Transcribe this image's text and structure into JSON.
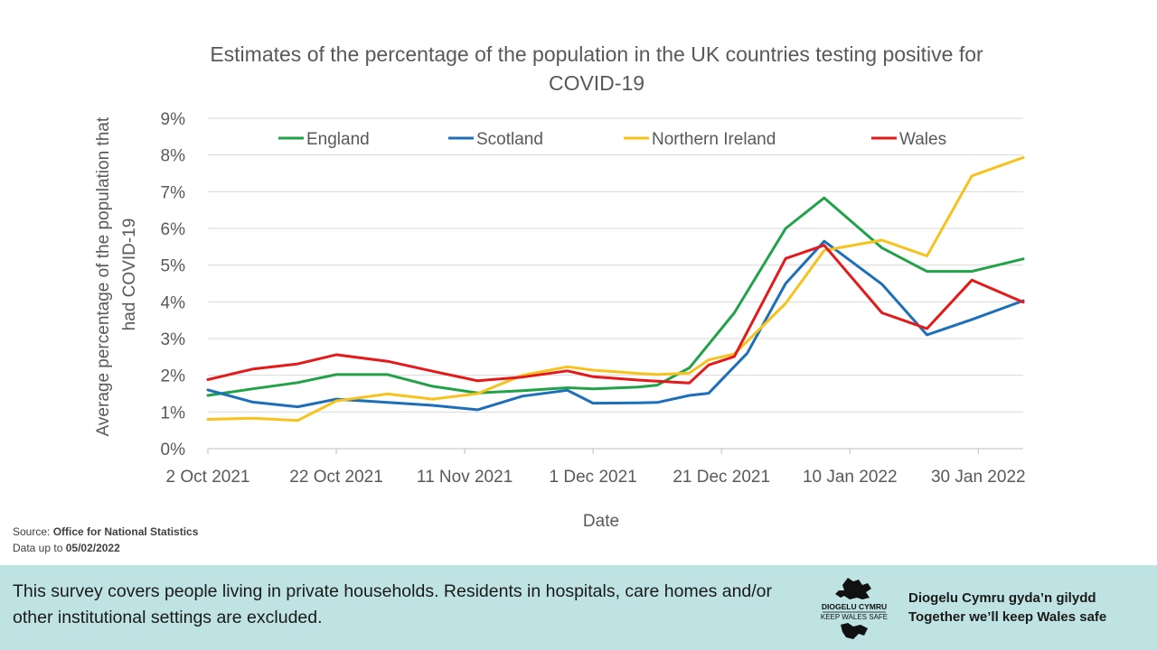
{
  "chart_data": {
    "type": "line",
    "title": "Estimates of the percentage of the population in the UK countries testing positive for COVID-19",
    "xlabel": "Date",
    "ylabel": "Average percentage of the population that had COVID-19",
    "ylim": [
      0,
      9
    ],
    "yticks": [
      "0%",
      "1%",
      "2%",
      "3%",
      "4%",
      "5%",
      "6%",
      "7%",
      "8%",
      "9%"
    ],
    "xticks": [
      {
        "label": "2 Oct 2021",
        "day": 0
      },
      {
        "label": "22 Oct 2021",
        "day": 20
      },
      {
        "label": "11 Nov 2021",
        "day": 40
      },
      {
        "label": "1 Dec 2021",
        "day": 60
      },
      {
        "label": "21 Dec 2021",
        "day": 80
      },
      {
        "label": "10 Jan 2022",
        "day": 100
      },
      {
        "label": "30 Jan 2022",
        "day": 120
      }
    ],
    "xlim": [
      0,
      127
    ],
    "legend_position": "top",
    "series": [
      {
        "name": "England",
        "color": "#21a249",
        "points": [
          [
            0,
            1.45
          ],
          [
            7,
            1.63
          ],
          [
            14,
            1.8
          ],
          [
            20,
            2.02
          ],
          [
            28,
            2.02
          ],
          [
            35,
            1.7
          ],
          [
            42,
            1.52
          ],
          [
            49,
            1.58
          ],
          [
            56,
            1.66
          ],
          [
            60,
            1.63
          ],
          [
            67,
            1.68
          ],
          [
            70,
            1.73
          ],
          [
            75,
            2.2
          ],
          [
            82,
            3.7
          ],
          [
            90,
            6.0
          ],
          [
            96,
            6.83
          ],
          [
            105,
            5.47
          ],
          [
            112,
            4.83
          ],
          [
            119,
            4.83
          ],
          [
            127,
            5.17
          ]
        ]
      },
      {
        "name": "Scotland",
        "color": "#1c6fb8",
        "points": [
          [
            0,
            1.6
          ],
          [
            7,
            1.27
          ],
          [
            14,
            1.14
          ],
          [
            20,
            1.35
          ],
          [
            28,
            1.26
          ],
          [
            35,
            1.18
          ],
          [
            42,
            1.06
          ],
          [
            49,
            1.43
          ],
          [
            56,
            1.59
          ],
          [
            60,
            1.24
          ],
          [
            67,
            1.25
          ],
          [
            70,
            1.26
          ],
          [
            75,
            1.45
          ],
          [
            78,
            1.51
          ],
          [
            84,
            2.6
          ],
          [
            90,
            4.5
          ],
          [
            96,
            5.65
          ],
          [
            105,
            4.48
          ],
          [
            112,
            3.1
          ],
          [
            119,
            3.52
          ],
          [
            127,
            4.03
          ]
        ]
      },
      {
        "name": "Northern Ireland",
        "color": "#f8c21c",
        "points": [
          [
            0,
            0.8
          ],
          [
            7,
            0.83
          ],
          [
            14,
            0.77
          ],
          [
            20,
            1.3
          ],
          [
            28,
            1.49
          ],
          [
            35,
            1.35
          ],
          [
            42,
            1.5
          ],
          [
            49,
            2.0
          ],
          [
            56,
            2.23
          ],
          [
            60,
            2.14
          ],
          [
            67,
            2.05
          ],
          [
            70,
            2.02
          ],
          [
            75,
            2.06
          ],
          [
            78,
            2.42
          ],
          [
            82,
            2.58
          ],
          [
            90,
            3.96
          ],
          [
            96,
            5.4
          ],
          [
            105,
            5.68
          ],
          [
            112,
            5.25
          ],
          [
            119,
            7.43
          ],
          [
            127,
            7.93
          ]
        ]
      },
      {
        "name": "Wales",
        "color": "#e41a1a",
        "points": [
          [
            0,
            1.88
          ],
          [
            7,
            2.17
          ],
          [
            14,
            2.31
          ],
          [
            20,
            2.56
          ],
          [
            28,
            2.38
          ],
          [
            35,
            2.11
          ],
          [
            42,
            1.85
          ],
          [
            49,
            1.95
          ],
          [
            56,
            2.12
          ],
          [
            60,
            1.96
          ],
          [
            67,
            1.87
          ],
          [
            70,
            1.84
          ],
          [
            75,
            1.79
          ],
          [
            78,
            2.28
          ],
          [
            82,
            2.51
          ],
          [
            90,
            5.18
          ],
          [
            96,
            5.54
          ],
          [
            105,
            3.7
          ],
          [
            112,
            3.27
          ],
          [
            119,
            4.59
          ],
          [
            127,
            3.99
          ]
        ]
      }
    ]
  },
  "source": {
    "label": "Source:",
    "value": "Office for National Statistics"
  },
  "data_date": {
    "label": "Data up to",
    "value": "05/02/2022"
  },
  "footer": {
    "note": "This survey covers people living in private households. Residents in hospitals, care homes and/or other institutional settings are excluded.",
    "logo_text_welsh": "DIOGELU CYMRU",
    "logo_text_english": "KEEP WALES SAFE",
    "slogan_welsh": "Diogelu Cymru gyda’n gilydd",
    "slogan_english": "Together we’ll keep Wales safe"
  }
}
